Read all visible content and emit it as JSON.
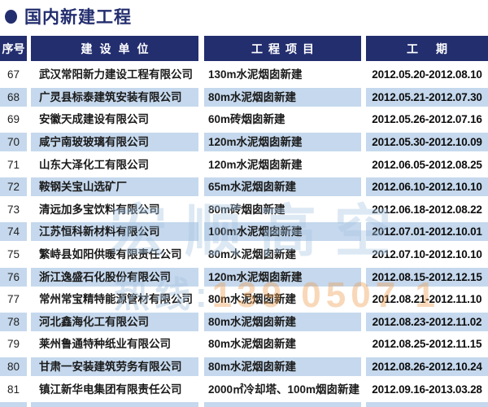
{
  "title": {
    "bullet": "●",
    "text": "国内新建工程"
  },
  "table": {
    "headers": {
      "no": "序号",
      "company": "建设单位",
      "project": "工程项目",
      "period": "工期"
    },
    "rows": [
      {
        "no": "67",
        "company": "武汉常阳新力建设工程有限公司",
        "project": "130m水泥烟囱新建",
        "period": "2012.05.20-2012.08.10"
      },
      {
        "no": "68",
        "company": "广灵县标泰建筑安装有限公司",
        "project": "80m水泥烟囱新建",
        "period": "2012.05.21-2012.07.30"
      },
      {
        "no": "69",
        "company": "安徽天成建设有限公司",
        "project": "60m砖烟囱新建",
        "period": "2012.05.26-2012.07.16"
      },
      {
        "no": "70",
        "company": "咸宁南玻玻璃有限公司",
        "project": "120m水泥烟囱新建",
        "period": "2012.05.30-2012.10.09"
      },
      {
        "no": "71",
        "company": "山东大泽化工有限公司",
        "project": "120m水泥烟囱新建",
        "period": "2012.06.05-2012.08.25"
      },
      {
        "no": "72",
        "company": "鞍钢关宝山选矿厂",
        "project": "65m水泥烟囱新建",
        "period": "2012.06.10-2012.10.10"
      },
      {
        "no": "73",
        "company": "清远加多宝饮料有限公司",
        "project": "80m砖烟囱新建",
        "period": "2012.06.18-2012.08.22"
      },
      {
        "no": "74",
        "company": "江苏恒科新材料有限公司",
        "project": "100m水泥烟囱新建",
        "period": "2012.07.01-2012.10.01"
      },
      {
        "no": "75",
        "company": "繁峙县如阳供暖有限责任公司",
        "project": "80m水泥烟囱新建",
        "period": "2012.07.10-2012.10.10"
      },
      {
        "no": "76",
        "company": "浙江逸盛石化股份有限公司",
        "project": "120m水泥烟囱新建",
        "period": "2012.08.15-2012.12.15"
      },
      {
        "no": "77",
        "company": "常州常宝精特能源管材有限公司",
        "project": "80m水泥烟囱新建",
        "period": "2012.08.21-2012.11.10"
      },
      {
        "no": "78",
        "company": "河北鑫海化工有限公司",
        "project": "80m水泥烟囱新建",
        "period": "2012.08.23-2012.11.02"
      },
      {
        "no": "79",
        "company": "莱州鲁通特种纸业有限公司",
        "project": "80m水泥烟囱新建",
        "period": "2012.08.25-2012.11.15"
      },
      {
        "no": "80",
        "company": "甘肃一安装建筑劳务有限公司",
        "project": "80m水泥烟囱新建",
        "period": "2012.08.26-2012.10.24"
      },
      {
        "no": "81",
        "company": "镇江新华电集团有限责任公司",
        "project": "2000㎡冷却塔、100m烟囱新建",
        "period": "2012.09.16-2013.03.28"
      }
    ]
  },
  "watermark": {
    "line1": "宏顺高空",
    "line2_label": "热线:",
    "line2_digits": "139 0507 1"
  },
  "colors": {
    "navy": "#232e6f",
    "row_blue": "#c5d8ed"
  }
}
